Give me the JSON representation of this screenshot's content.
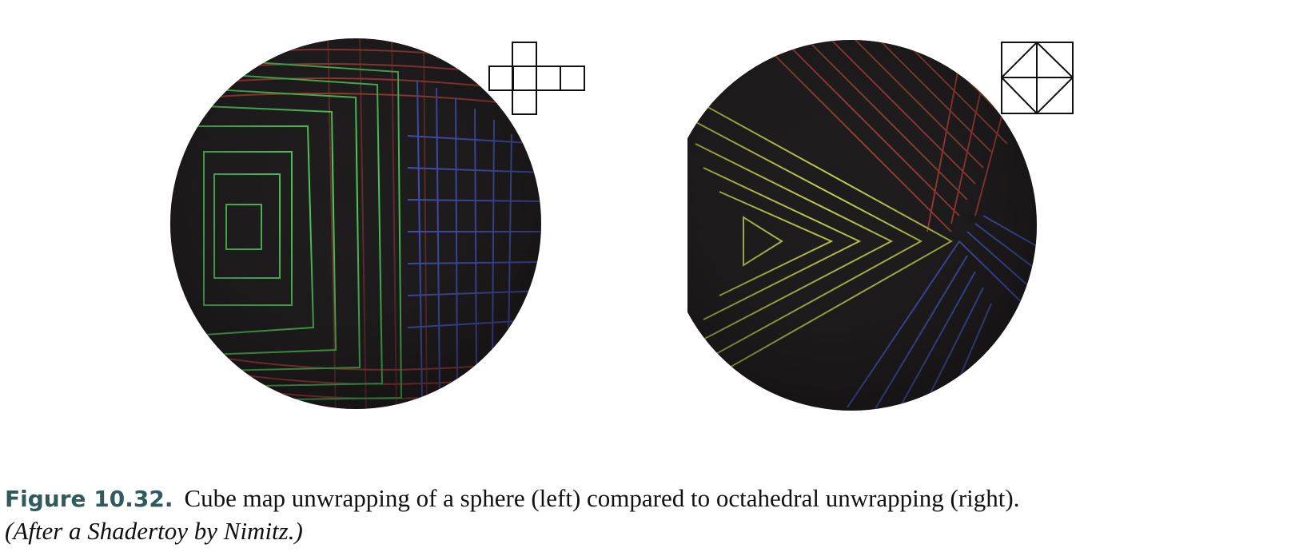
{
  "caption": {
    "label": "Figure 10.32.",
    "text": "Cube map unwrapping of a sphere (left) compared to octahedral unwrapping (right).",
    "credit": "(After a Shadertoy by Nimitz.)"
  },
  "colors": {
    "sphere": "#1d1b1c",
    "red": "#c9453b",
    "green": "#4fd35a",
    "yellow": "#c8d14a",
    "blue": "#4b58c8",
    "label": "#2f5b5c"
  },
  "icons": {
    "left": "cube-cross-unwrap-icon",
    "right": "octahedral-unwrap-icon"
  }
}
